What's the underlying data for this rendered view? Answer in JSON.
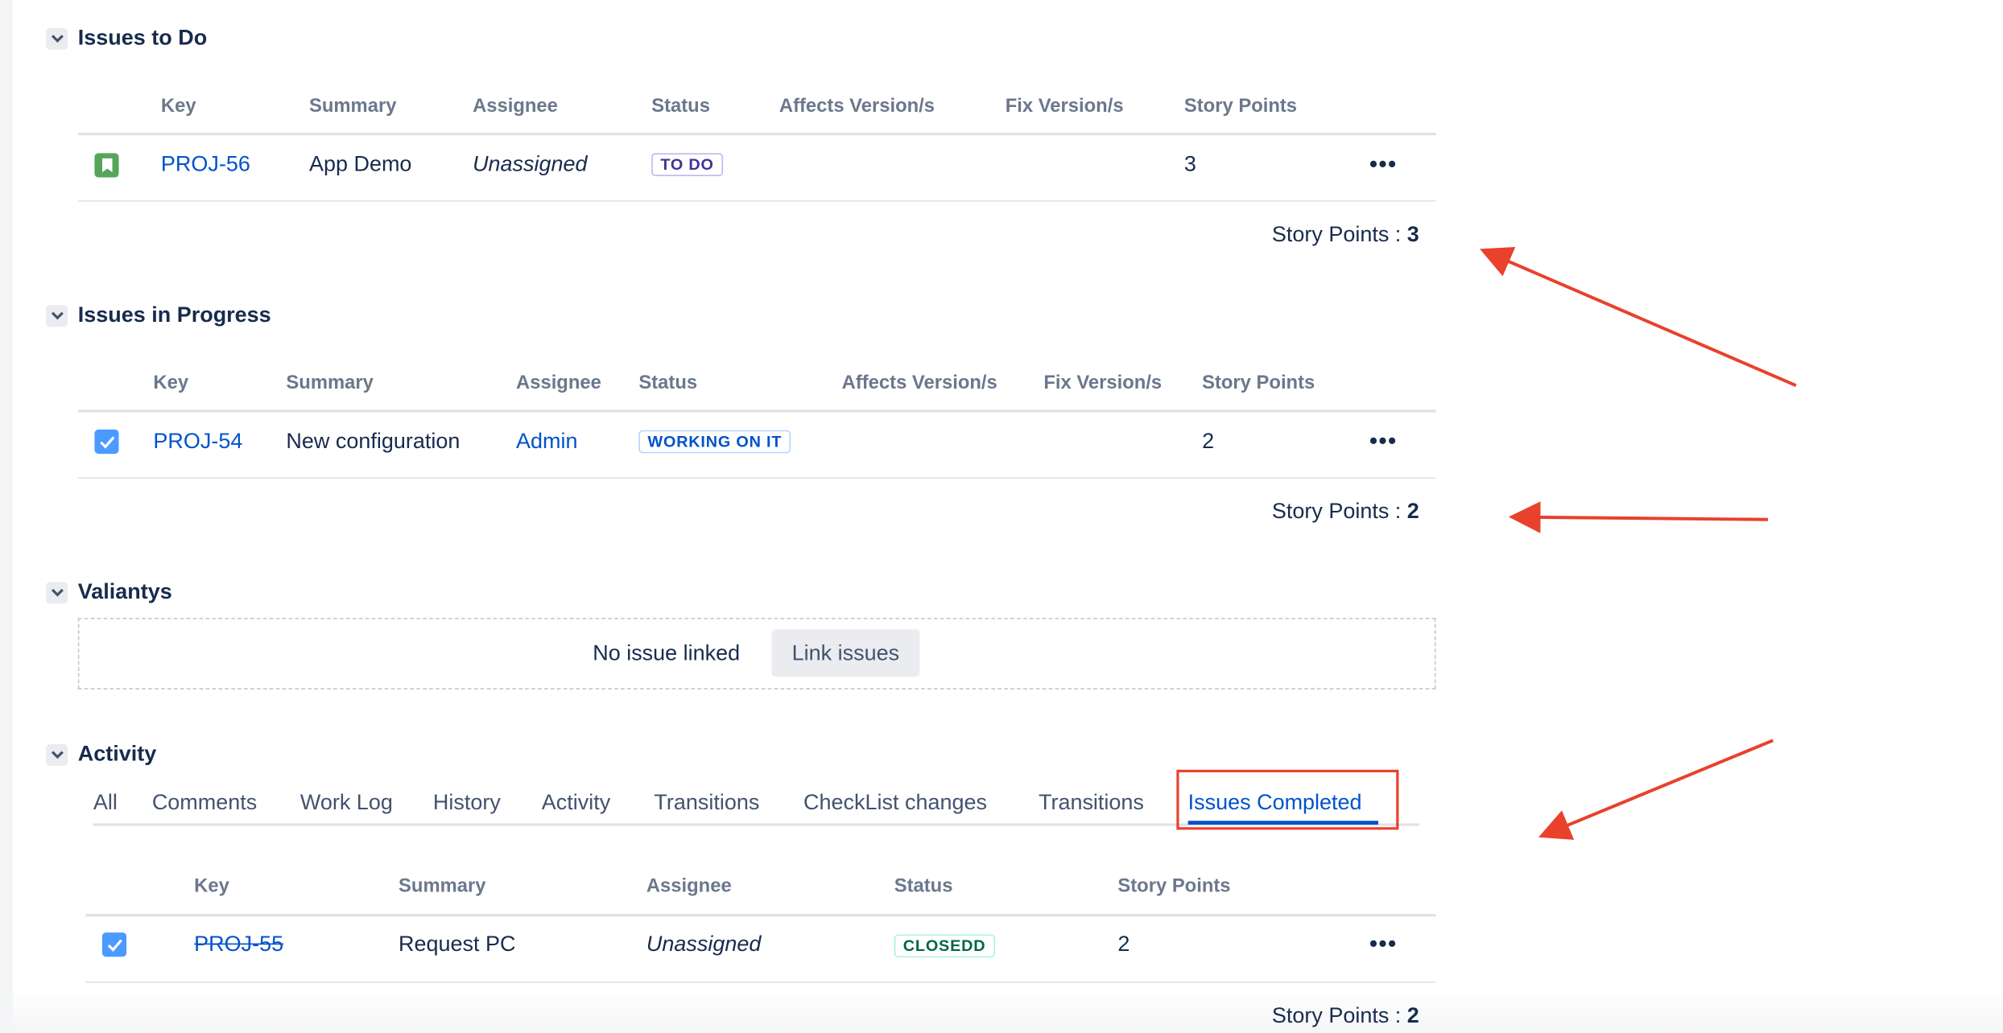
{
  "sections": {
    "todo": {
      "title": "Issues to Do",
      "columns": [
        "Key",
        "Summary",
        "Assignee",
        "Status",
        "Affects Version/s",
        "Fix Version/s",
        "Story Points"
      ],
      "rows": [
        {
          "type_icon": "story-icon",
          "key": "PROJ-56",
          "summary": "App Demo",
          "assignee": "Unassigned",
          "status": "TO DO",
          "story_points": "3"
        }
      ],
      "total_label": "Story Points : ",
      "total_value": "3"
    },
    "in_progress": {
      "title": "Issues in Progress",
      "columns": [
        "Key",
        "Summary",
        "Assignee",
        "Status",
        "Affects Version/s",
        "Fix Version/s",
        "Story Points"
      ],
      "rows": [
        {
          "type_icon": "task-icon",
          "key": "PROJ-54",
          "summary": "New configuration",
          "assignee": "Admin",
          "status": "WORKING ON IT",
          "story_points": "2"
        }
      ],
      "total_label": "Story Points : ",
      "total_value": "2"
    },
    "valiantys": {
      "title": "Valiantys",
      "empty_text": "No issue linked",
      "link_button": "Link issues"
    },
    "activity": {
      "title": "Activity",
      "tabs": [
        "All",
        "Comments",
        "Work Log",
        "History",
        "Activity",
        "Transitions",
        "CheckList changes",
        "Transitions",
        "Issues Completed"
      ],
      "active_tab": "Issues Completed",
      "columns": [
        "Key",
        "Summary",
        "Assignee",
        "Status",
        "Story Points"
      ],
      "rows": [
        {
          "type_icon": "task-icon",
          "key": "PROJ-55",
          "summary": "Request PC",
          "assignee": "Unassigned",
          "status": "CLOSEDD",
          "story_points": "2"
        }
      ],
      "total_label": "Story Points : ",
      "total_value": "2"
    }
  },
  "colors": {
    "link": "#0052cc",
    "annotation": "#e8412c",
    "todo_badge": "#403294",
    "progress_badge": "#0052cc",
    "done_badge": "#006644"
  },
  "annotations": [
    "arrow-to-todo-total",
    "arrow-to-progress-total",
    "arrow-to-issues-completed-tab",
    "highlight-box-issues-completed"
  ]
}
